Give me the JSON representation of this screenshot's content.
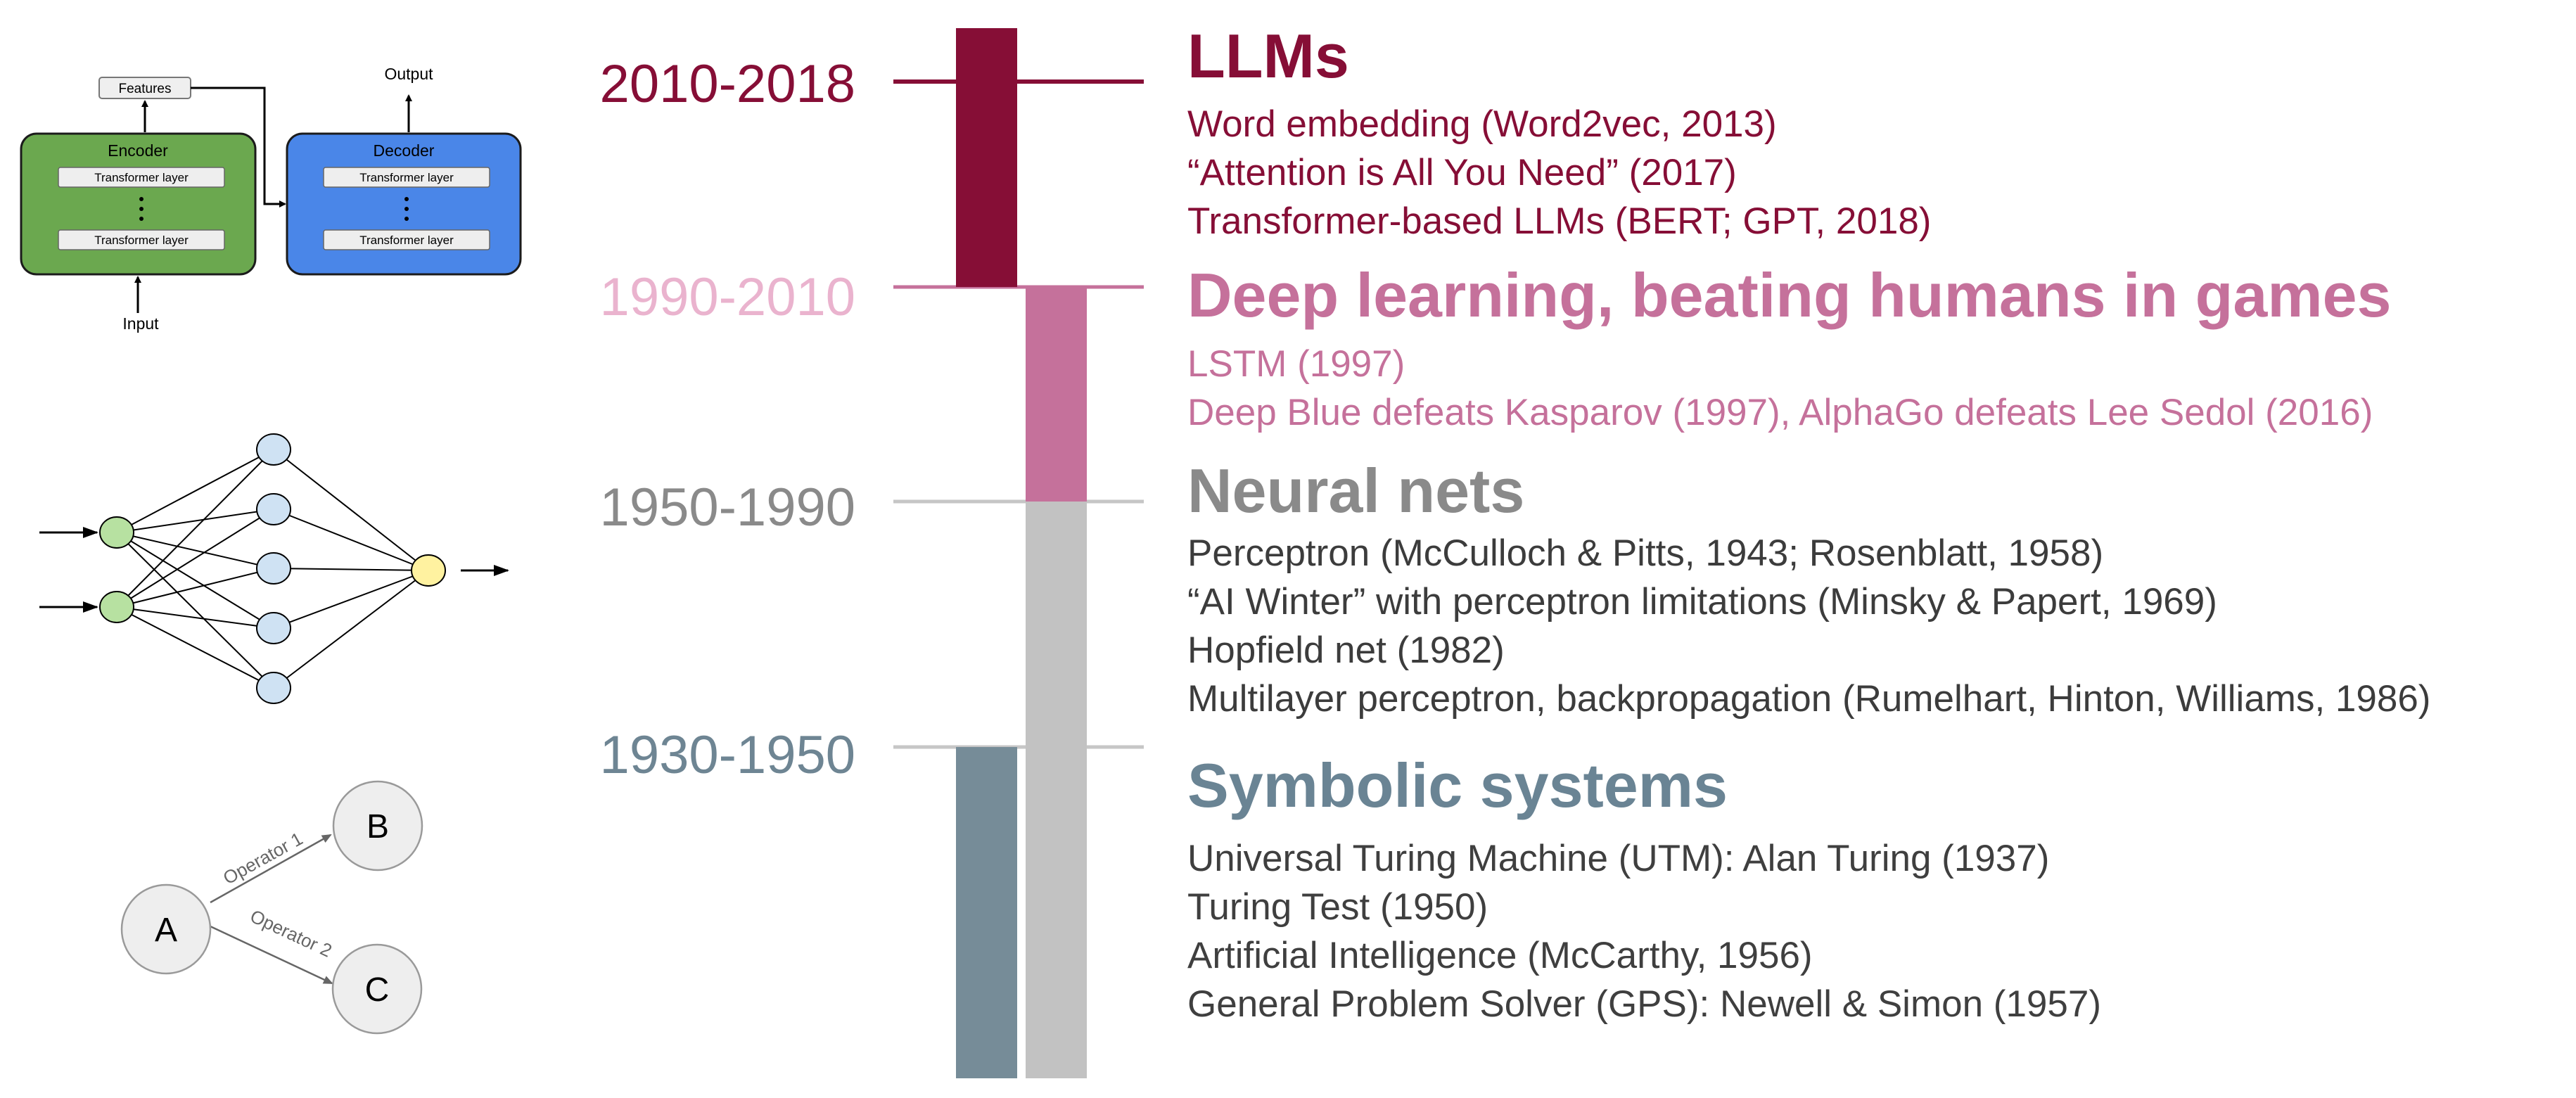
{
  "colors": {
    "llm": "#860E36",
    "deep": "#C5719B",
    "neural": "#8A8A8A",
    "neural_text": "#3C3C3C",
    "neural_bar": "#C2C2C2",
    "symbolic": "#6E8593",
    "symbolic_bar": "#768C98",
    "symbolic_title": "#6A8494",
    "text_dark": "#3F3F3F",
    "encoder_fill": "#6BA84F",
    "decoder_fill": "#4A86E8",
    "input_node": "#B7E1A1",
    "hidden_node": "#CFE2F3",
    "output_node": "#FFF2A0",
    "state_node": "#EEEEEE"
  },
  "transformer": {
    "features_label": "Features",
    "output_label": "Output",
    "input_label": "Input",
    "encoder_label": "Encoder",
    "decoder_label": "Decoder",
    "layer_label": "Transformer layer"
  },
  "search_graph": {
    "node_a": "A",
    "node_b": "B",
    "node_c": "C",
    "operator_1": "Operator 1",
    "operator_2": "Operator 2"
  },
  "eras": [
    {
      "range": "2010-2018",
      "title": "LLMs",
      "items": [
        "Word embedding (Word2vec, 2013)",
        "“Attention is All You Need” (2017)",
        "Transformer-based LLMs (BERT; GPT, 2018)"
      ]
    },
    {
      "range": "1990-2010",
      "title": "Deep learning, beating humans in games",
      "items": [
        "LSTM (1997)",
        "Deep Blue defeats Kasparov (1997), AlphaGo defeats Lee Sedol (2016)"
      ]
    },
    {
      "range": "1950-1990",
      "title": "Neural nets",
      "items": [
        "Perceptron (McCulloch & Pitts, 1943; Rosenblatt, 1958)",
        "“AI Winter” with perceptron limitations (Minsky & Papert, 1969)",
        "Hopfield net (1982)",
        "Multilayer perceptron, backpropagation (Rumelhart, Hinton, Williams, 1986)"
      ]
    },
    {
      "range": "1930-1950",
      "title": "Symbolic systems",
      "items": [
        "Universal Turing Machine (UTM): Alan Turing (1937)",
        "Turing Test (1950)",
        "Artificial Intelligence (McCarthy, 1956)",
        "General Problem Solver (GPS): Newell & Simon (1957)"
      ]
    }
  ]
}
